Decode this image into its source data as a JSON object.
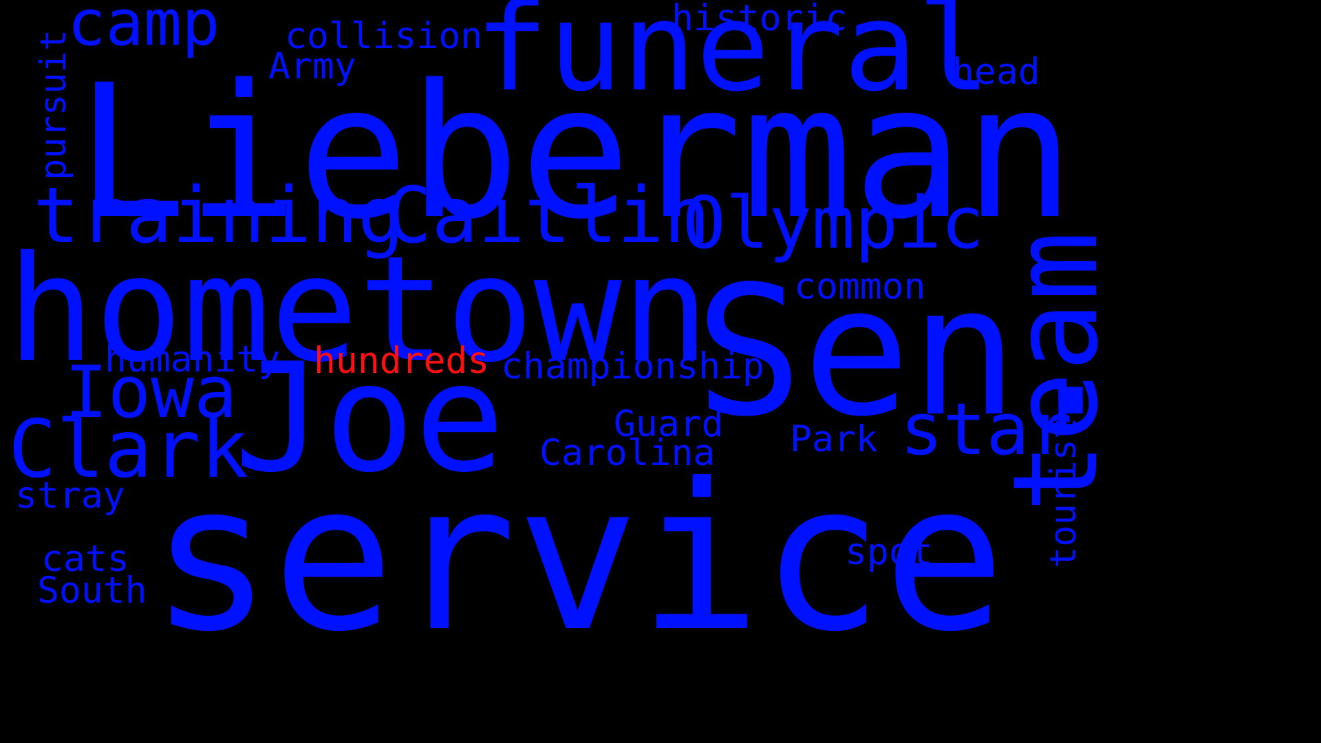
{
  "colors": {
    "background": "#000000",
    "primary_word": "#0011ff",
    "highlight_word": "#ff1010"
  },
  "words": {
    "lieberman": "Lieberman",
    "service": "service",
    "hometown": "hometown",
    "sen": "Sen.",
    "joe": "Joe",
    "funeral": "funeral",
    "team": "team",
    "training": "training",
    "caitlin": "Caitlin",
    "olympic": "Olympic",
    "clark": "Clark",
    "iowa": "Iowa",
    "star": "star",
    "camp": "camp",
    "collision": "collision",
    "army": "Army",
    "historic": "historic",
    "head": "head",
    "pursuit": "pursuit",
    "common": "common",
    "humanity": "humanity",
    "hundreds": "hundreds",
    "championship": "championship",
    "guard": "Guard",
    "carolina": "Carolina",
    "park": "Park",
    "tourist": "tourist",
    "stray": "stray",
    "cats": "cats",
    "south": "South",
    "spot": "spot"
  }
}
